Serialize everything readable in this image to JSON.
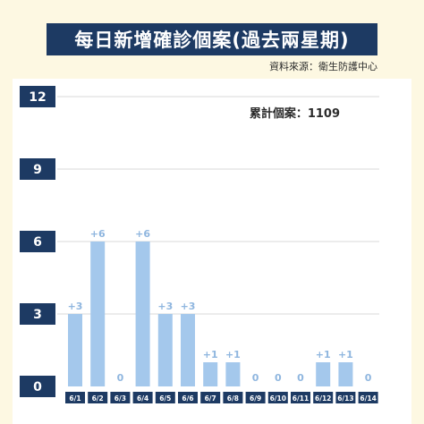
{
  "header": {
    "title": "每日新增確診個案(過去兩星期)",
    "source": "資料來源：衛生防護中心"
  },
  "colors": {
    "title_bg": "#1d3a63",
    "background": "#fdf8e2",
    "bar": "#a4c8ec",
    "label": "#8fb6df",
    "tick_bg": "#1d3a63"
  },
  "chart_data": {
    "type": "bar",
    "title": "每日新增確診個案(過去兩星期)",
    "categories": [
      "6/1",
      "6/2",
      "6/3",
      "6/4",
      "6/5",
      "6/6",
      "6/7",
      "6/8",
      "6/9",
      "6/10",
      "6/11",
      "6/12",
      "6/13",
      "6/14"
    ],
    "values": [
      3,
      6,
      0,
      6,
      3,
      3,
      1,
      1,
      0,
      0,
      0,
      1,
      1,
      0
    ],
    "data_labels": [
      "+3",
      "+6",
      "0",
      "+6",
      "+3",
      "+3",
      "+1",
      "+1",
      "0",
      "0",
      "0",
      "+1",
      "+1",
      "0"
    ],
    "yticks": [
      0,
      3,
      6,
      9,
      12
    ],
    "ylim": [
      0,
      12
    ],
    "grid": true,
    "annotation": "累計個案：1109"
  }
}
